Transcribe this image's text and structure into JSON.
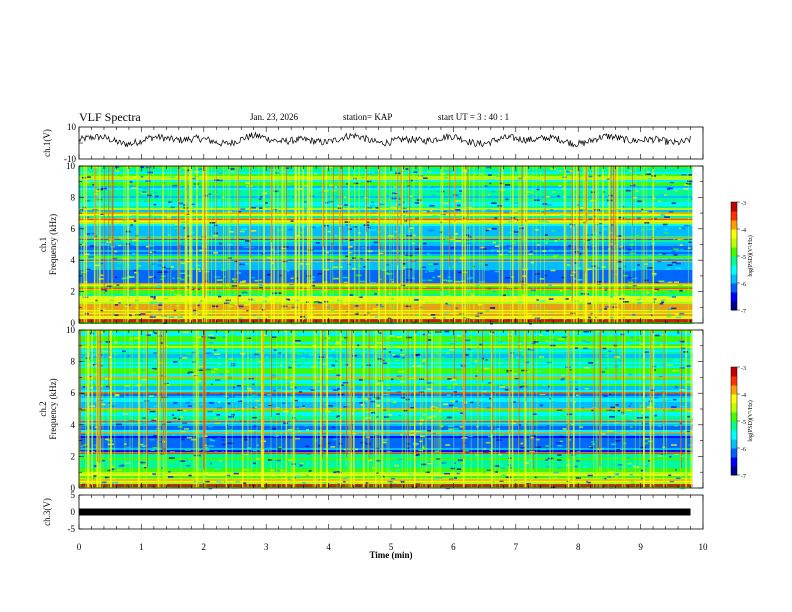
{
  "header": {
    "title": "VLF Spectra",
    "date": "Jan. 23, 2026",
    "station": "station= KAP",
    "start": "start  UT =   3 : 40 : 1"
  },
  "chart_data": [
    {
      "type": "line",
      "panel": "ch1-waveform",
      "ylabel": "ch.1(V)",
      "ylim": [
        -10,
        10
      ],
      "yticks": [
        "10",
        "-10"
      ],
      "xlim": [
        0,
        10
      ],
      "description_series": "noisy voltage trace oscillating roughly between -4 V and +6 V",
      "series": [
        {
          "name": "ch.1",
          "x_range_min": [
            0,
            9.8
          ],
          "approx_level_V": 2
        }
      ]
    },
    {
      "type": "heatmap",
      "panel": "ch1-spectrogram",
      "ylabel": "ch.1\nFrequency  (kHz)",
      "ylim": [
        0,
        10
      ],
      "yticks": [
        "0",
        "2",
        "4",
        "6",
        "8",
        "10"
      ],
      "xlim": [
        0,
        10
      ],
      "colorbar": {
        "label": "log(PSD)(V²/Hz)",
        "range": [
          -7,
          -3
        ],
        "ticks": [
          "-3",
          "-4",
          "-5",
          "-6",
          "-7"
        ]
      },
      "dominant_bands_kHz": [
        0.7,
        2.2,
        2.5,
        4.0,
        5.4,
        6.6,
        7.0
      ]
    },
    {
      "type": "heatmap",
      "panel": "ch2-spectrogram",
      "ylabel": "ch.2\nFrequency  (kHz)",
      "ylim": [
        0,
        10
      ],
      "yticks": [
        "0",
        "2",
        "4",
        "6",
        "8",
        "10"
      ],
      "xlim": [
        0,
        10
      ],
      "colorbar": {
        "label": "log(PSD)(V²/Hz)",
        "range": [
          -7,
          -3
        ],
        "ticks": [
          "-3",
          "-4",
          "-5",
          "-6",
          "-7"
        ]
      },
      "dominant_bands_kHz": [
        0.5,
        2.2,
        3.5,
        4.2,
        5.0,
        6.0,
        7.0
      ]
    },
    {
      "type": "line",
      "panel": "ch3-waveform",
      "ylabel": "ch.3(V)",
      "ylim": [
        -5,
        5
      ],
      "yticks": [
        "5",
        "0",
        "-5"
      ],
      "xlim": [
        0,
        10
      ],
      "series": [
        {
          "name": "ch.3",
          "approx_level_V": 0,
          "x_range_min": [
            0,
            9.8
          ]
        }
      ]
    }
  ],
  "xaxis": {
    "label": "Time  (min)",
    "ticks": [
      "0",
      "1",
      "2",
      "3",
      "4",
      "5",
      "6",
      "7",
      "8",
      "9",
      "10"
    ]
  },
  "colors": {
    "colormap": [
      "#000090",
      "#0000ff",
      "#0060ff",
      "#00c0ff",
      "#00ffff",
      "#00ff90",
      "#40ff00",
      "#c0ff00",
      "#ffff00",
      "#ffa000",
      "#ff3000",
      "#c00000"
    ]
  }
}
